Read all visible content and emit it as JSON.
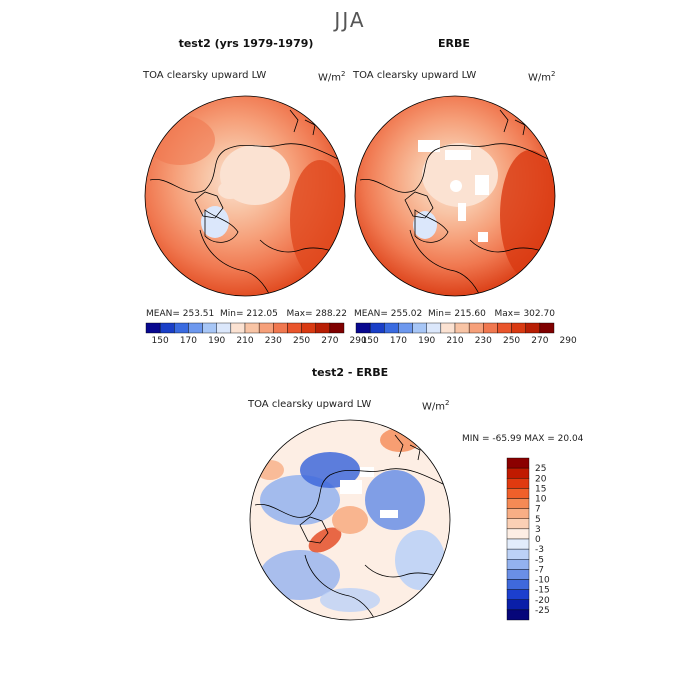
{
  "season": "JJA",
  "panels": [
    {
      "title": "test2 (yrs 1979-1979)",
      "variable": "TOA clearsky upward LW",
      "units_base": "W/m",
      "units_exp": "2",
      "stats": {
        "mean": "MEAN= 253.51",
        "min": "Min= 212.05",
        "max": "Max= 288.22"
      },
      "colorbar_ticks": [
        "150",
        "170",
        "190",
        "210",
        "230",
        "250",
        "270",
        "290"
      ]
    },
    {
      "title": "ERBE",
      "variable": "TOA clearsky upward LW",
      "units_base": "W/m",
      "units_exp": "2",
      "stats": {
        "mean": "MEAN= 255.02",
        "min": "Min= 215.60",
        "max": "Max= 302.70"
      },
      "colorbar_ticks": [
        "150",
        "170",
        "190",
        "210",
        "230",
        "250",
        "270",
        "290"
      ]
    }
  ],
  "diff_panel": {
    "title": "test2 - ERBE",
    "variable": "TOA clearsky upward LW",
    "units_base": "W/m",
    "units_exp": "2",
    "minmax": "MIN = -65.99 MAX =  20.04",
    "colorbar_ticks": [
      "25",
      "20",
      "15",
      "10",
      "7",
      "5",
      "3",
      "0",
      "-3",
      "-5",
      "-7",
      "-10",
      "-15",
      "-20",
      "-25"
    ]
  },
  "colors": {
    "abs_scale": [
      "#08088f",
      "#1a3fc7",
      "#3a6be0",
      "#6d98ee",
      "#a7c6f6",
      "#dbe7fb",
      "#fbe2d2",
      "#f8c4a5",
      "#f6a07a",
      "#f07850",
      "#e9552c",
      "#d93a12",
      "#b81f05",
      "#7f0000"
    ],
    "diff_scale": [
      "#8b0000",
      "#c01a00",
      "#e03a10",
      "#f0602a",
      "#f58a55",
      "#f8ae85",
      "#fbd0b5",
      "#fdeee4",
      "#e2ecfb",
      "#bcd1f6",
      "#93b2ef",
      "#6a8fe6",
      "#3f69db",
      "#1c3fce",
      "#0a1fa8",
      "#06067a"
    ]
  }
}
